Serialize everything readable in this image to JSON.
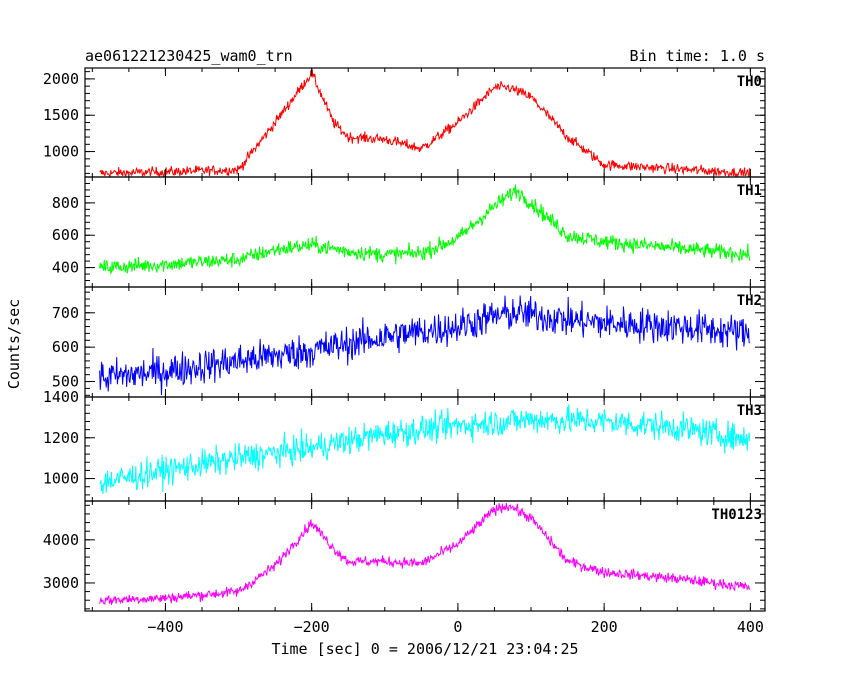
{
  "chart_data": {
    "type": "line",
    "header_left": "ae061221230425_wam0_trn",
    "header_right": "Bin time: 1.0 s",
    "xlabel": "Time [sec] 0 = 2006/12/21 23:04:25",
    "ylabel": "Counts/sec",
    "xlim": [
      -510,
      420
    ],
    "x_ticks": [
      -400,
      -200,
      0,
      200,
      400
    ],
    "x_tick_labels": [
      "−400",
      "−200",
      "0",
      "200",
      "400"
    ],
    "grid": false,
    "panels": [
      {
        "name": "TH0",
        "color": "#ff0000",
        "ylim": [
          650,
          2150
        ],
        "y_ticks": [
          1000,
          1500,
          2000
        ],
        "y_tick_labels": [
          "1000",
          "1500",
          "2000"
        ],
        "x": [
          -490,
          -400,
          -300,
          -250,
          -200,
          -170,
          -150,
          -100,
          -50,
          0,
          50,
          70,
          100,
          150,
          200,
          300,
          400
        ],
        "y": [
          700,
          720,
          750,
          1400,
          2080,
          1400,
          1200,
          1170,
          1040,
          1400,
          1880,
          1880,
          1750,
          1200,
          820,
          760,
          700
        ]
      },
      {
        "name": "TH1",
        "color": "#00ff00",
        "ylim": [
          280,
          960
        ],
        "y_ticks": [
          400,
          600,
          800
        ],
        "y_tick_labels": [
          "400",
          "600",
          "800"
        ],
        "x": [
          -490,
          -400,
          -300,
          -250,
          -200,
          -150,
          -100,
          -50,
          0,
          50,
          80,
          100,
          150,
          200,
          300,
          400
        ],
        "y": [
          400,
          420,
          450,
          510,
          540,
          500,
          480,
          490,
          580,
          780,
          880,
          800,
          600,
          560,
          520,
          480
        ]
      },
      {
        "name": "TH2",
        "color": "#0000ff",
        "ylim": [
          455,
          775
        ],
        "y_ticks": [
          500,
          600,
          700
        ],
        "y_tick_labels": [
          "500",
          "600",
          "700"
        ],
        "x": [
          -490,
          -400,
          -300,
          -200,
          -100,
          0,
          50,
          80,
          150,
          200,
          300,
          400
        ],
        "y": [
          510,
          530,
          560,
          590,
          630,
          660,
          690,
          700,
          680,
          670,
          660,
          640
        ]
      },
      {
        "name": "TH3",
        "color": "#00ffff",
        "ylim": [
          890,
          1400
        ],
        "y_ticks": [
          1000,
          1200,
          1400
        ],
        "y_tick_labels": [
          "1000",
          "1200",
          "1400"
        ],
        "x": [
          -490,
          -400,
          -300,
          -200,
          -100,
          0,
          100,
          200,
          300,
          400
        ],
        "y": [
          980,
          1040,
          1100,
          1150,
          1220,
          1260,
          1290,
          1280,
          1250,
          1190
        ]
      },
      {
        "name": "TH0123",
        "color": "#ff00ff",
        "ylim": [
          2350,
          4900
        ],
        "y_ticks": [
          3000,
          4000
        ],
        "y_tick_labels": [
          "3000",
          "4000"
        ],
        "x": [
          -490,
          -400,
          -300,
          -250,
          -200,
          -170,
          -150,
          -100,
          -50,
          0,
          50,
          70,
          100,
          150,
          200,
          300,
          400
        ],
        "y": [
          2600,
          2650,
          2800,
          3400,
          4400,
          3800,
          3500,
          3500,
          3450,
          3900,
          4700,
          4800,
          4500,
          3500,
          3250,
          3100,
          2900
        ]
      }
    ]
  }
}
